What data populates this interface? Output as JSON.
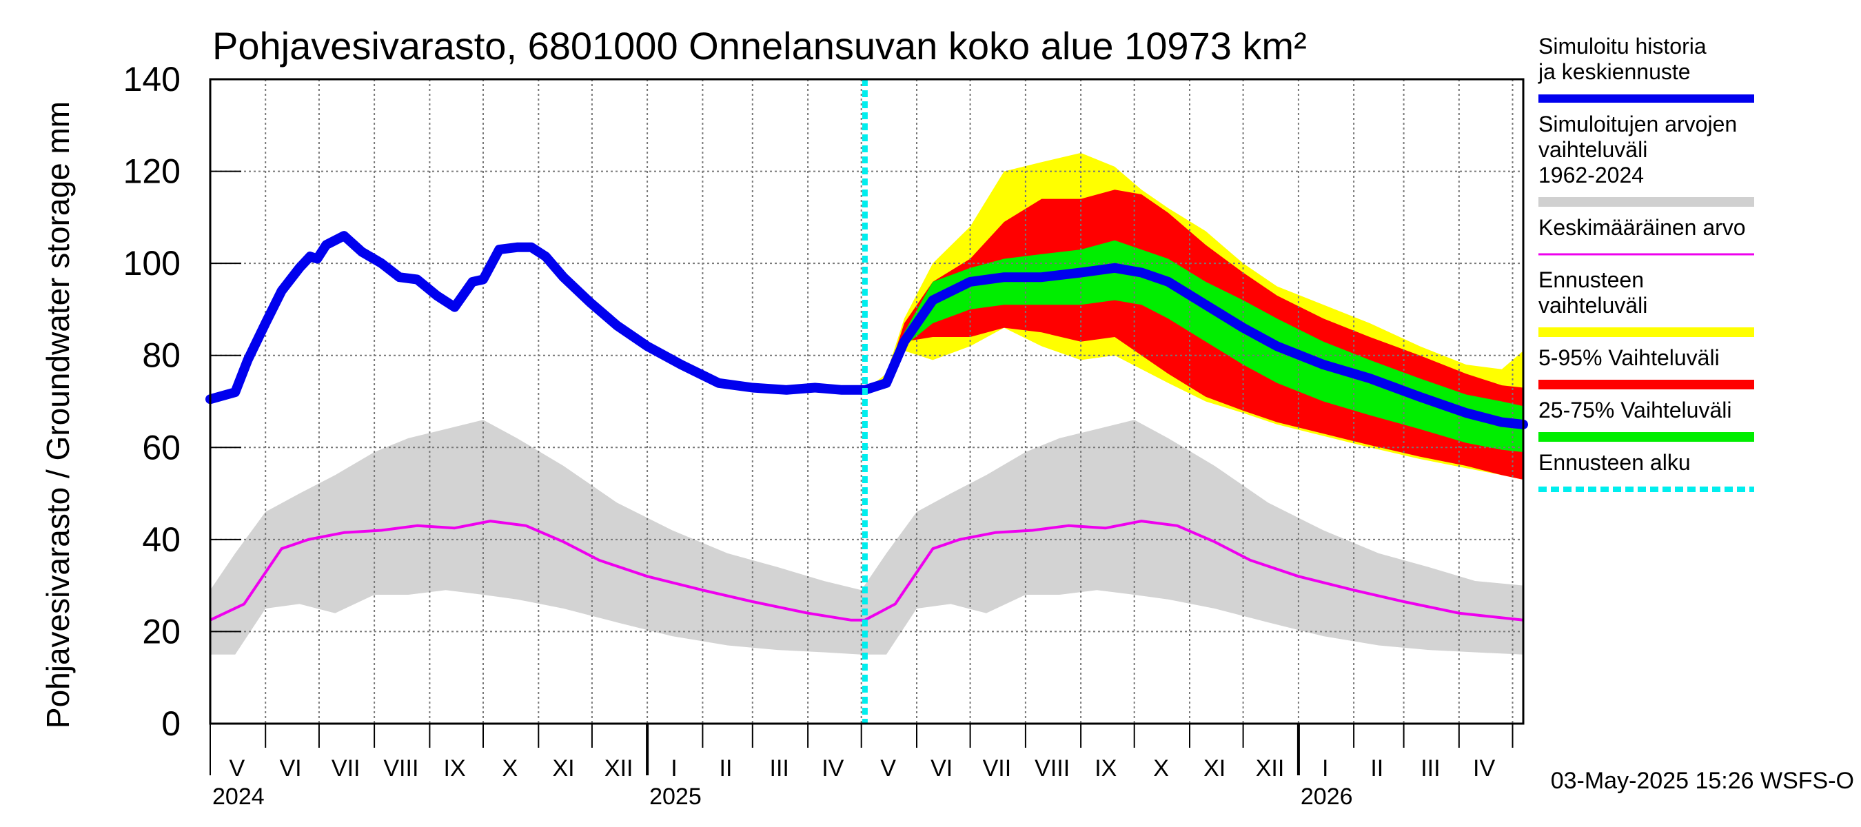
{
  "chart_data": {
    "type": "area",
    "title": "Pohjavesivarasto, 6801000 Onnelansuvan koko alue 10973 km²",
    "ylabel": "Pohjavesivarasto / Groundwater storage   mm",
    "ylim": [
      0,
      140
    ],
    "yticks": [
      "0",
      "20",
      "40",
      "60",
      "80",
      "100",
      "120",
      "140"
    ],
    "x_domain": [
      "2024-05-01",
      "2026-05-07"
    ],
    "month_labels": [
      {
        "label": "V",
        "date": "2024-05-16"
      },
      {
        "label": "VI",
        "date": "2024-06-15"
      },
      {
        "label": "VII",
        "date": "2024-07-16"
      },
      {
        "label": "VIII",
        "date": "2024-08-16"
      },
      {
        "label": "IX",
        "date": "2024-09-15"
      },
      {
        "label": "X",
        "date": "2024-10-16"
      },
      {
        "label": "XI",
        "date": "2024-11-15"
      },
      {
        "label": "XII",
        "date": "2024-12-16"
      },
      {
        "label": "I",
        "date": "2025-01-16"
      },
      {
        "label": "II",
        "date": "2025-02-14"
      },
      {
        "label": "III",
        "date": "2025-03-16"
      },
      {
        "label": "IV",
        "date": "2025-04-15"
      },
      {
        "label": "V",
        "date": "2025-05-16"
      },
      {
        "label": "VI",
        "date": "2025-06-15"
      },
      {
        "label": "VII",
        "date": "2025-07-16"
      },
      {
        "label": "VIII",
        "date": "2025-08-16"
      },
      {
        "label": "IX",
        "date": "2025-09-15"
      },
      {
        "label": "X",
        "date": "2025-10-16"
      },
      {
        "label": "XI",
        "date": "2025-11-15"
      },
      {
        "label": "XII",
        "date": "2025-12-16"
      },
      {
        "label": "I",
        "date": "2026-01-16"
      },
      {
        "label": "II",
        "date": "2026-02-14"
      },
      {
        "label": "III",
        "date": "2026-03-16"
      },
      {
        "label": "IV",
        "date": "2026-04-15"
      }
    ],
    "year_labels": [
      {
        "label": "2024",
        "date": "2024-05-01"
      },
      {
        "label": "2025",
        "date": "2025-01-01"
      },
      {
        "label": "2026",
        "date": "2026-01-01"
      }
    ],
    "forecast_start": "2025-05-03",
    "legend": [
      {
        "label": "Simuloitu historia ja keskiennuste",
        "color": "#0000ee",
        "style": "thick"
      },
      {
        "label": "Simuloitujen arvojen vaihteluväli 1962-2024",
        "color": "#d0d0d0",
        "style": "band"
      },
      {
        "label": "Keskimääräinen arvo",
        "color": "#ee00ee",
        "style": "line"
      },
      {
        "label": "Ennusteen vaihteluväli",
        "color": "#ffff00",
        "style": "band"
      },
      {
        "label": "5-95% Vaihteluväli",
        "color": "#ff0000",
        "style": "band"
      },
      {
        "label": "25-75% Vaihteluväli",
        "color": "#00ee00",
        "style": "band"
      },
      {
        "label": "Ennusteen alku",
        "color": "#00eeee",
        "style": "dashed"
      }
    ],
    "footer": "03-May-2025 15:26 WSFS-O",
    "series": {
      "history": {
        "name": "Simuloitu historia ja keskiennuste",
        "x": [
          "2024-05-01",
          "2024-05-15",
          "2024-05-22",
          "2024-06-01",
          "2024-06-10",
          "2024-06-20",
          "2024-06-26",
          "2024-06-30",
          "2024-07-05",
          "2024-07-15",
          "2024-07-25",
          "2024-08-05",
          "2024-08-15",
          "2024-08-25",
          "2024-09-05",
          "2024-09-15",
          "2024-09-25",
          "2024-10-01",
          "2024-10-10",
          "2024-10-20",
          "2024-10-28",
          "2024-11-05",
          "2024-11-15",
          "2024-11-30",
          "2024-12-15",
          "2025-01-01",
          "2025-01-20",
          "2025-02-10",
          "2025-03-01",
          "2025-03-20",
          "2025-04-05",
          "2025-04-20",
          "2025-05-03"
        ],
        "y": [
          70.5,
          72,
          79,
          87,
          94,
          99,
          101.5,
          101,
          104,
          106,
          102.5,
          100,
          97,
          96.5,
          93,
          90.5,
          96,
          96.5,
          103,
          103.5,
          103.5,
          101.5,
          97,
          91.5,
          86.5,
          82,
          78,
          74,
          73,
          72.5,
          73,
          72.5,
          72.5
        ]
      },
      "forecast_mean": {
        "name": "keskiennuste",
        "x": [
          "2025-05-03",
          "2025-05-15",
          "2025-05-25",
          "2025-06-10",
          "2025-07-01",
          "2025-07-20",
          "2025-08-10",
          "2025-09-01",
          "2025-09-20",
          "2025-10-05",
          "2025-10-20",
          "2025-11-10",
          "2025-12-01",
          "2025-12-20",
          "2026-01-15",
          "2026-02-10",
          "2026-03-10",
          "2026-04-05",
          "2026-04-25",
          "2026-05-07"
        ],
        "y": [
          72.5,
          74,
          83,
          92,
          96,
          97,
          97,
          98,
          99,
          98,
          96,
          91,
          86,
          82,
          78,
          75,
          71,
          67.5,
          65.5,
          65
        ]
      },
      "forecast_bands": {
        "x": [
          "2025-05-03",
          "2025-05-15",
          "2025-05-25",
          "2025-06-10",
          "2025-07-01",
          "2025-07-20",
          "2025-08-10",
          "2025-09-01",
          "2025-09-20",
          "2025-10-05",
          "2025-10-20",
          "2025-11-10",
          "2025-12-01",
          "2025-12-20",
          "2026-01-15",
          "2026-02-10",
          "2026-03-10",
          "2026-04-05",
          "2026-04-25",
          "2026-05-07"
        ],
        "yellow_low": [
          72.5,
          73,
          81,
          79,
          82,
          86,
          82,
          79,
          80,
          77,
          74,
          70,
          67.5,
          65,
          62.5,
          60,
          57.5,
          55.5,
          54,
          53
        ],
        "yellow_high": [
          72.5,
          76,
          88,
          100,
          108,
          120,
          122,
          124,
          121,
          116,
          112,
          107,
          100,
          95,
          91,
          87,
          82,
          78,
          77,
          81
        ],
        "red_low": [
          72.5,
          73,
          83,
          84,
          84,
          86,
          85,
          83,
          84,
          80,
          76,
          71,
          68,
          65.5,
          63,
          60.5,
          58,
          56,
          54,
          53
        ],
        "red_high": [
          72.5,
          75,
          87,
          96,
          101,
          109,
          114,
          114,
          116,
          115,
          111,
          104,
          98,
          93,
          88,
          84,
          80,
          76,
          73.5,
          73
        ],
        "green_low": [
          72.5,
          74,
          82,
          87,
          90,
          91,
          91,
          91,
          92,
          91,
          88,
          83,
          78,
          74,
          70,
          67,
          64,
          61,
          59.5,
          59
        ],
        "green_high": [
          72.5,
          75,
          85,
          96,
          99,
          101,
          102,
          103,
          105,
          103,
          101,
          96,
          92,
          88,
          83,
          79,
          75,
          71.5,
          70,
          69
        ]
      },
      "hist_range": {
        "name": "Simuloitujen arvojen vaihteluväli 1962-2024",
        "x": [
          "2024-05-01",
          "2024-05-15",
          "2024-06-01",
          "2024-06-20",
          "2024-07-10",
          "2024-08-01",
          "2024-08-20",
          "2024-09-10",
          "2024-10-01",
          "2024-10-20",
          "2024-11-15",
          "2024-12-15",
          "2025-01-15",
          "2025-02-15",
          "2025-03-15",
          "2025-04-10",
          "2025-05-01",
          "2025-05-15",
          "2025-06-01",
          "2025-06-20",
          "2025-07-10",
          "2025-08-01",
          "2025-08-20",
          "2025-09-10",
          "2025-10-01",
          "2025-10-20",
          "2025-11-15",
          "2025-12-15",
          "2026-01-15",
          "2026-02-15",
          "2026-03-15",
          "2026-04-10",
          "2026-05-07"
        ],
        "low": [
          15,
          15,
          25,
          26,
          24,
          28,
          28,
          29,
          28,
          27,
          25,
          22,
          19,
          17,
          16,
          15.5,
          15,
          15,
          25,
          26,
          24,
          28,
          28,
          29,
          28,
          27,
          25,
          22,
          19,
          17,
          16,
          15.5,
          15
        ],
        "high": [
          29,
          37,
          46,
          50,
          54,
          59,
          62,
          64,
          66,
          62,
          56,
          48,
          42,
          37,
          34,
          31,
          29,
          37,
          46,
          50,
          54,
          59,
          62,
          64,
          66,
          62,
          56,
          48,
          42,
          37,
          34,
          31,
          30
        ]
      },
      "mean": {
        "name": "Keskimääräinen arvo",
        "x": [
          "2024-05-01",
          "2024-05-20",
          "2024-06-10",
          "2024-06-25",
          "2024-07-15",
          "2024-08-05",
          "2024-08-25",
          "2024-09-15",
          "2024-10-05",
          "2024-10-25",
          "2024-11-15",
          "2024-12-05",
          "2025-01-01",
          "2025-02-01",
          "2025-03-01",
          "2025-04-01",
          "2025-04-25",
          "2025-05-03",
          "2025-05-20",
          "2025-06-10",
          "2025-06-25",
          "2025-07-15",
          "2025-08-05",
          "2025-08-25",
          "2025-09-15",
          "2025-10-05",
          "2025-10-25",
          "2025-11-15",
          "2025-12-05",
          "2026-01-01",
          "2026-02-01",
          "2026-03-01",
          "2026-04-01",
          "2026-05-07"
        ],
        "y": [
          22.5,
          26,
          38,
          40,
          41.5,
          42,
          43,
          42.5,
          44,
          43,
          39.5,
          35.5,
          32,
          29,
          26.5,
          24,
          22.5,
          22.5,
          26,
          38,
          40,
          41.5,
          42,
          43,
          42.5,
          44,
          43,
          39.5,
          35.5,
          32,
          29,
          26.5,
          24,
          22.5
        ]
      }
    }
  }
}
